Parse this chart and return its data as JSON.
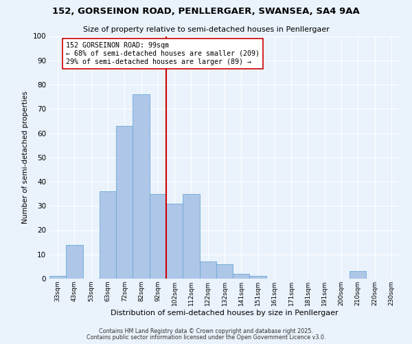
{
  "title1": "152, GORSEINON ROAD, PENLLERGAER, SWANSEA, SA4 9AA",
  "title2": "Size of property relative to semi-detached houses in Penllergaer",
  "xlabel": "Distribution of semi-detached houses by size in Penllergaer",
  "ylabel": "Number of semi-detached properties",
  "bar_labels": [
    "33sqm",
    "43sqm",
    "53sqm",
    "63sqm",
    "72sqm",
    "82sqm",
    "92sqm",
    "102sqm",
    "112sqm",
    "122sqm",
    "132sqm",
    "141sqm",
    "151sqm",
    "161sqm",
    "171sqm",
    "181sqm",
    "191sqm",
    "200sqm",
    "210sqm",
    "220sqm",
    "230sqm"
  ],
  "bar_heights": [
    1,
    14,
    0,
    36,
    63,
    76,
    35,
    31,
    35,
    7,
    6,
    2,
    1,
    0,
    0,
    0,
    0,
    0,
    3,
    0,
    0
  ],
  "bar_color": "#aec6e8",
  "bar_edge_color": "#6aaad4",
  "vline_color": "#cc0000",
  "annotation_title": "152 GORSEINON ROAD: 99sqm",
  "annotation_line1": "← 68% of semi-detached houses are smaller (209)",
  "annotation_line2": "29% of semi-detached houses are larger (89) →",
  "annotation_box_color": "#ffffff",
  "annotation_box_edge": "#cc0000",
  "ylim": [
    0,
    100
  ],
  "yticks": [
    0,
    10,
    20,
    30,
    40,
    50,
    60,
    70,
    80,
    90,
    100
  ],
  "footer1": "Contains HM Land Registry data © Crown copyright and database right 2025.",
  "footer2": "Contains public sector information licensed under the Open Government Licence v3.0.",
  "bg_color": "#eaf2fb",
  "plot_bg_color": "#eaf2fb"
}
